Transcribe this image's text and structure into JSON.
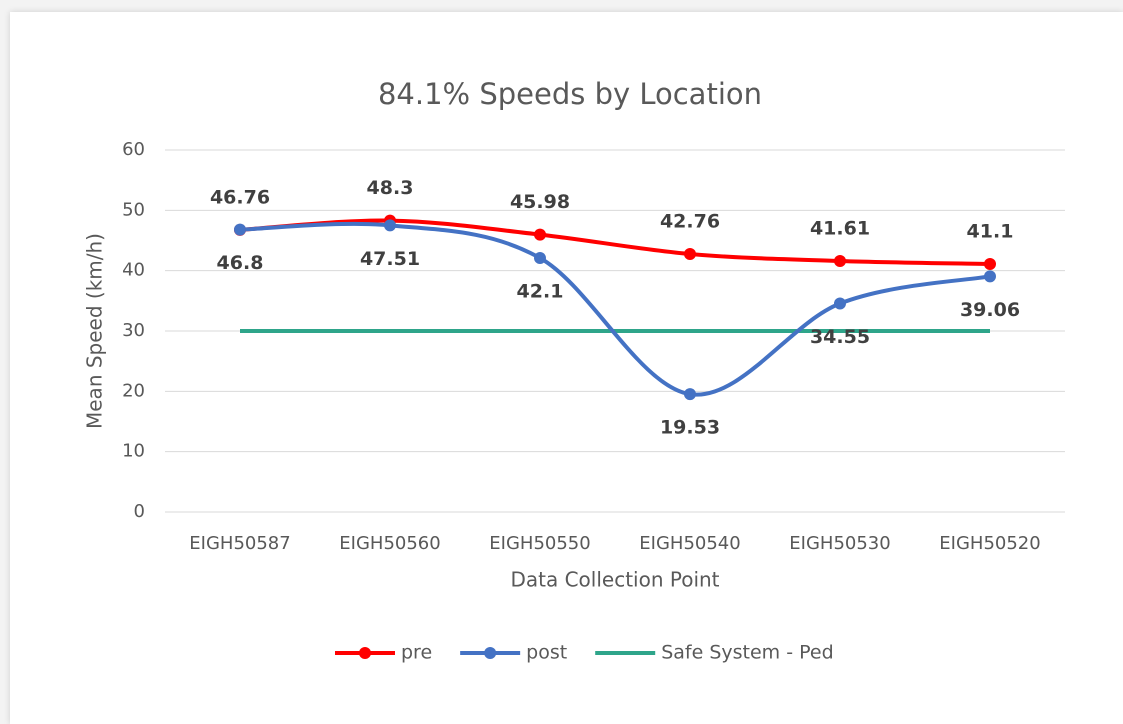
{
  "chart_data": {
    "type": "line",
    "title": "84.1% Speeds by Location",
    "x_label": "Data Collection Point",
    "y_label": "Mean Speed (km/h)",
    "categories": [
      "EIGH50587",
      "EIGH50560",
      "EIGH50550",
      "EIGH50540",
      "EIGH50530",
      "EIGH50520"
    ],
    "series": [
      {
        "name": "pre",
        "color": "#ff0000",
        "values": [
          46.76,
          48.3,
          45.98,
          42.76,
          41.61,
          41.1
        ],
        "markers": true,
        "labels": "above"
      },
      {
        "name": "post",
        "color": "#4472c4",
        "values": [
          46.8,
          47.51,
          42.1,
          19.53,
          34.55,
          39.06
        ],
        "markers": true,
        "labels": "below"
      },
      {
        "name": "Safe System - Ped",
        "color": "#2ea58a",
        "values": [
          30,
          30,
          30,
          30,
          30,
          30
        ],
        "markers": false
      }
    ],
    "ylim": [
      0,
      60
    ],
    "yticks": [
      0,
      10,
      20,
      30,
      40,
      50,
      60
    ],
    "grid": true,
    "smooth": true,
    "legend": "bottom"
  }
}
